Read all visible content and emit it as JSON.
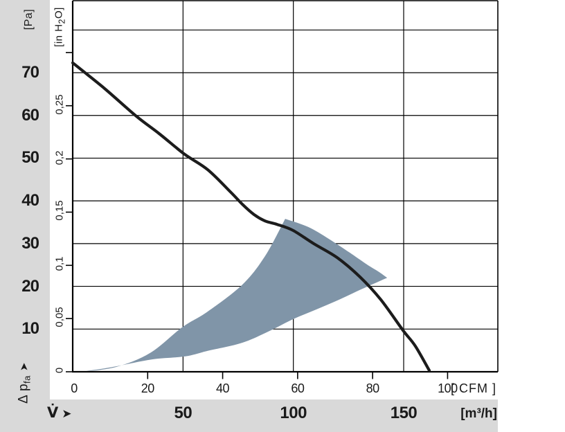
{
  "chart_data": {
    "type": "line",
    "description": "Fan air-performance curve: static pressure increase vs volumetric flow, with shaded recommended operating range",
    "x_axis_cfm": {
      "unit_label": "[ CFM ]",
      "ticks": [
        0,
        20,
        40,
        60,
        80,
        100
      ]
    },
    "x_axis_m3h": {
      "flow_symbol": "V̇",
      "arrow": "➤",
      "unit_label": "[m³/h]",
      "ticks": [
        50,
        100,
        150
      ]
    },
    "y_axis_pa": {
      "unit_label": "[Pa]",
      "quantity": "Δ p",
      "quantity_sub": "fa",
      "arrow": "➤",
      "ticks": [
        10,
        20,
        30,
        40,
        50,
        60,
        70
      ]
    },
    "y_axis_inh2o": {
      "unit_label_pre": "[in H",
      "unit_label_sub": "2",
      "unit_label_post": "O]",
      "ticks": [
        {
          "value": 0,
          "label": "0"
        },
        {
          "value": 0.05,
          "label": "0,05"
        },
        {
          "value": 0.1,
          "label": "0,1"
        },
        {
          "value": 0.15,
          "label": "0,15"
        },
        {
          "value": 0.2,
          "label": "0,2"
        },
        {
          "value": 0.25,
          "label": "0,25"
        },
        {
          "value": 0.3,
          "label": ""
        }
      ]
    },
    "gridlines": {
      "horizontal_pa": [
        10,
        20,
        30,
        40,
        50,
        60,
        70,
        80
      ],
      "vertical_m3h": [
        50,
        100,
        150
      ]
    },
    "axis_ranges": {
      "m3h": [
        0,
        192.7
      ],
      "pa": [
        0,
        86.9
      ]
    },
    "pressure_curve_m3h_pa": [
      [
        0,
        72.3
      ],
      [
        14.2,
        66.4
      ],
      [
        28.9,
        59.8
      ],
      [
        39.3,
        55.7
      ],
      [
        50.5,
        51.0
      ],
      [
        61.2,
        47.3
      ],
      [
        71.5,
        42.1
      ],
      [
        76.9,
        39.2
      ],
      [
        82.2,
        36.8
      ],
      [
        87.2,
        35.3
      ],
      [
        92.6,
        34.5
      ],
      [
        99.8,
        33.1
      ],
      [
        109.2,
        30.0
      ],
      [
        119.9,
        26.7
      ],
      [
        130.2,
        22.2
      ],
      [
        139.6,
        16.9
      ],
      [
        149.7,
        9.7
      ],
      [
        155.3,
        6.0
      ],
      [
        161.6,
        0.3
      ]
    ],
    "operating_range_area": {
      "lower_edge_m3h_pa": [
        [
          4,
          0
        ],
        [
          12,
          0.6
        ],
        [
          20,
          1.3
        ],
        [
          36,
          2.9
        ],
        [
          51,
          3.6
        ],
        [
          61.2,
          4.9
        ],
        [
          76.9,
          6.8
        ],
        [
          89.4,
          9.6
        ],
        [
          99.8,
          12.3
        ],
        [
          110.5,
          14.6
        ],
        [
          120.8,
          16.9
        ],
        [
          131.2,
          19.4
        ],
        [
          142.5,
          22.0
        ]
      ],
      "right_edge_m3h_pa": [
        [
          142.5,
          22.0
        ],
        [
          139.0,
          23.3
        ],
        [
          133.4,
          25.1
        ],
        [
          125.5,
          27.9
        ],
        [
          116.1,
          31.1
        ],
        [
          106.7,
          33.9
        ],
        [
          96.3,
          35.8
        ]
      ],
      "upper_edge_m3h_pa": [
        [
          96.3,
          35.8
        ],
        [
          87.2,
          27.1
        ],
        [
          76.9,
          20.4
        ],
        [
          61.2,
          14.1
        ],
        [
          49.6,
          10.4
        ],
        [
          35.1,
          4.4
        ],
        [
          19.5,
          1.1
        ],
        [
          4,
          0
        ]
      ]
    },
    "colors": {
      "curve": "#1c1c1c",
      "operating_area": "#8095a8",
      "grid": "#000000",
      "strip_background": "#d9d9d9",
      "plot_background": "#ffffff"
    }
  }
}
